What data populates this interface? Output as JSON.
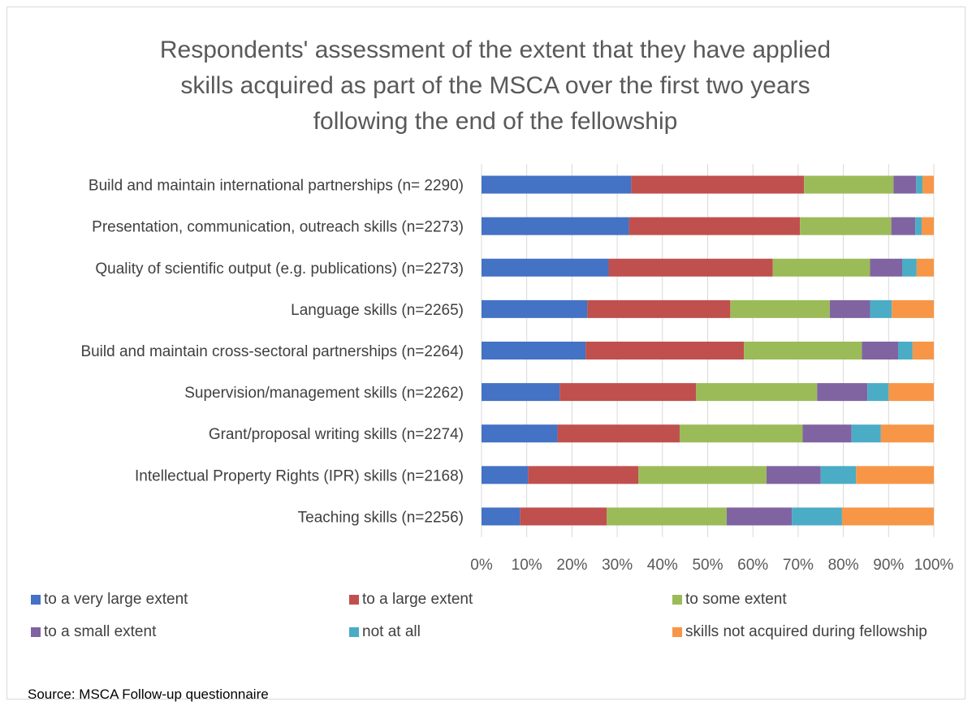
{
  "chart_data": {
    "type": "bar",
    "orientation": "horizontal",
    "stacked": "percent",
    "title": "Respondents' assessment of the extent that they have applied skills acquired as part of the MSCA over the first two years following the end of the fellowship",
    "title_lines": [
      "Respondents' assessment of the extent that they have applied",
      "skills acquired as part of the MSCA over the first two years",
      "following the end of the fellowship"
    ],
    "categories": [
      "Build and maintain international partnerships (n= 2290)",
      "Presentation, communication, outreach skills (n=2273)",
      "Quality of scientific output (e.g. publications) (n=2273)",
      "Language skills (n=2265)",
      "Build and maintain cross-sectoral partnerships (n=2264)",
      "Supervision/management skills (n=2262)",
      "Grant/proposal writing skills (n=2274)",
      "Intellectual Property Rights (IPR) skills (n=2168)",
      "Teaching skills (n=2256)"
    ],
    "series": [
      {
        "name": "to a very large extent",
        "color": "#4472c4",
        "values": [
          33.1,
          32.6,
          28.1,
          23.4,
          23.0,
          17.3,
          16.8,
          10.3,
          8.5
        ]
      },
      {
        "name": "to a large extent",
        "color": "#c0504d",
        "values": [
          38.2,
          37.8,
          36.3,
          31.6,
          35.0,
          30.1,
          27.0,
          24.4,
          19.2
        ]
      },
      {
        "name": "to some extent",
        "color": "#9bbb59",
        "values": [
          19.8,
          20.2,
          21.5,
          22.0,
          26.1,
          26.8,
          27.2,
          28.3,
          26.5
        ]
      },
      {
        "name": "to a small extent",
        "color": "#8064a2",
        "values": [
          5.0,
          5.3,
          7.1,
          8.9,
          8.0,
          11.1,
          10.8,
          12.0,
          14.4
        ]
      },
      {
        "name": "not at all",
        "color": "#4bacc6",
        "values": [
          1.4,
          1.4,
          3.2,
          4.8,
          3.2,
          4.7,
          6.5,
          7.8,
          11.1
        ]
      },
      {
        "name": "skills not acquired during fellowship",
        "color": "#f79646",
        "values": [
          2.5,
          2.7,
          3.8,
          9.3,
          4.7,
          10.0,
          11.7,
          17.2,
          20.3
        ]
      }
    ],
    "xlim": [
      0,
      100
    ],
    "x_ticks": [
      "0%",
      "10%",
      "20%",
      "30%",
      "40%",
      "50%",
      "60%",
      "70%",
      "80%",
      "90%",
      "100%"
    ],
    "grid": true,
    "legend_position": "bottom"
  },
  "source_note": "Source: MSCA Follow-up questionnaire"
}
